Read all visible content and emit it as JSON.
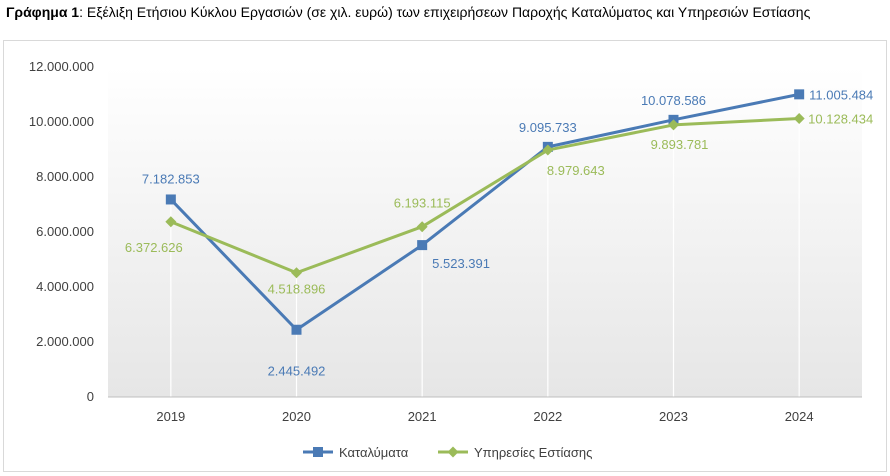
{
  "caption": {
    "label": "Γράφημα 1",
    "text": ": Εξέλιξη Ετήσιου Κύκλου Εργασιών (σε χιλ. ευρώ) των επιχειρήσεων Παροχής Καταλύματος και Υπηρεσιών Εστίασης"
  },
  "chart_data": {
    "type": "line",
    "title": "",
    "xlabel": "",
    "ylabel": "",
    "categories": [
      "2019",
      "2020",
      "2021",
      "2022",
      "2023",
      "2024"
    ],
    "ylim": [
      0,
      12000000
    ],
    "yticks": [
      0,
      2000000,
      4000000,
      6000000,
      8000000,
      10000000,
      12000000
    ],
    "ytick_labels": [
      "0",
      "2.000.000",
      "4.000.000",
      "6.000.000",
      "8.000.000",
      "10.000.000",
      "12.000.000"
    ],
    "grid": false,
    "legend_position": "bottom",
    "series": [
      {
        "name": "Καταλύματα",
        "color": "#4a7ab5",
        "marker": "square",
        "values": [
          7182853,
          2445492,
          5523391,
          9095733,
          10078586,
          11005484
        ],
        "labels": [
          "7.182.853",
          "2.445.492",
          "5.523.391",
          "9.095.733",
          "10.078.586",
          "11.005.484"
        ]
      },
      {
        "name": "Υπηρεσίες Εστίασης",
        "color": "#9bbb59",
        "marker": "diamond",
        "values": [
          6372626,
          4518896,
          6193115,
          8979643,
          9893781,
          10128434
        ],
        "labels": [
          "6.372.626",
          "4.518.896",
          "6.193.115",
          "8.979.643",
          "9.893.781",
          "10.128.434"
        ]
      }
    ]
  }
}
